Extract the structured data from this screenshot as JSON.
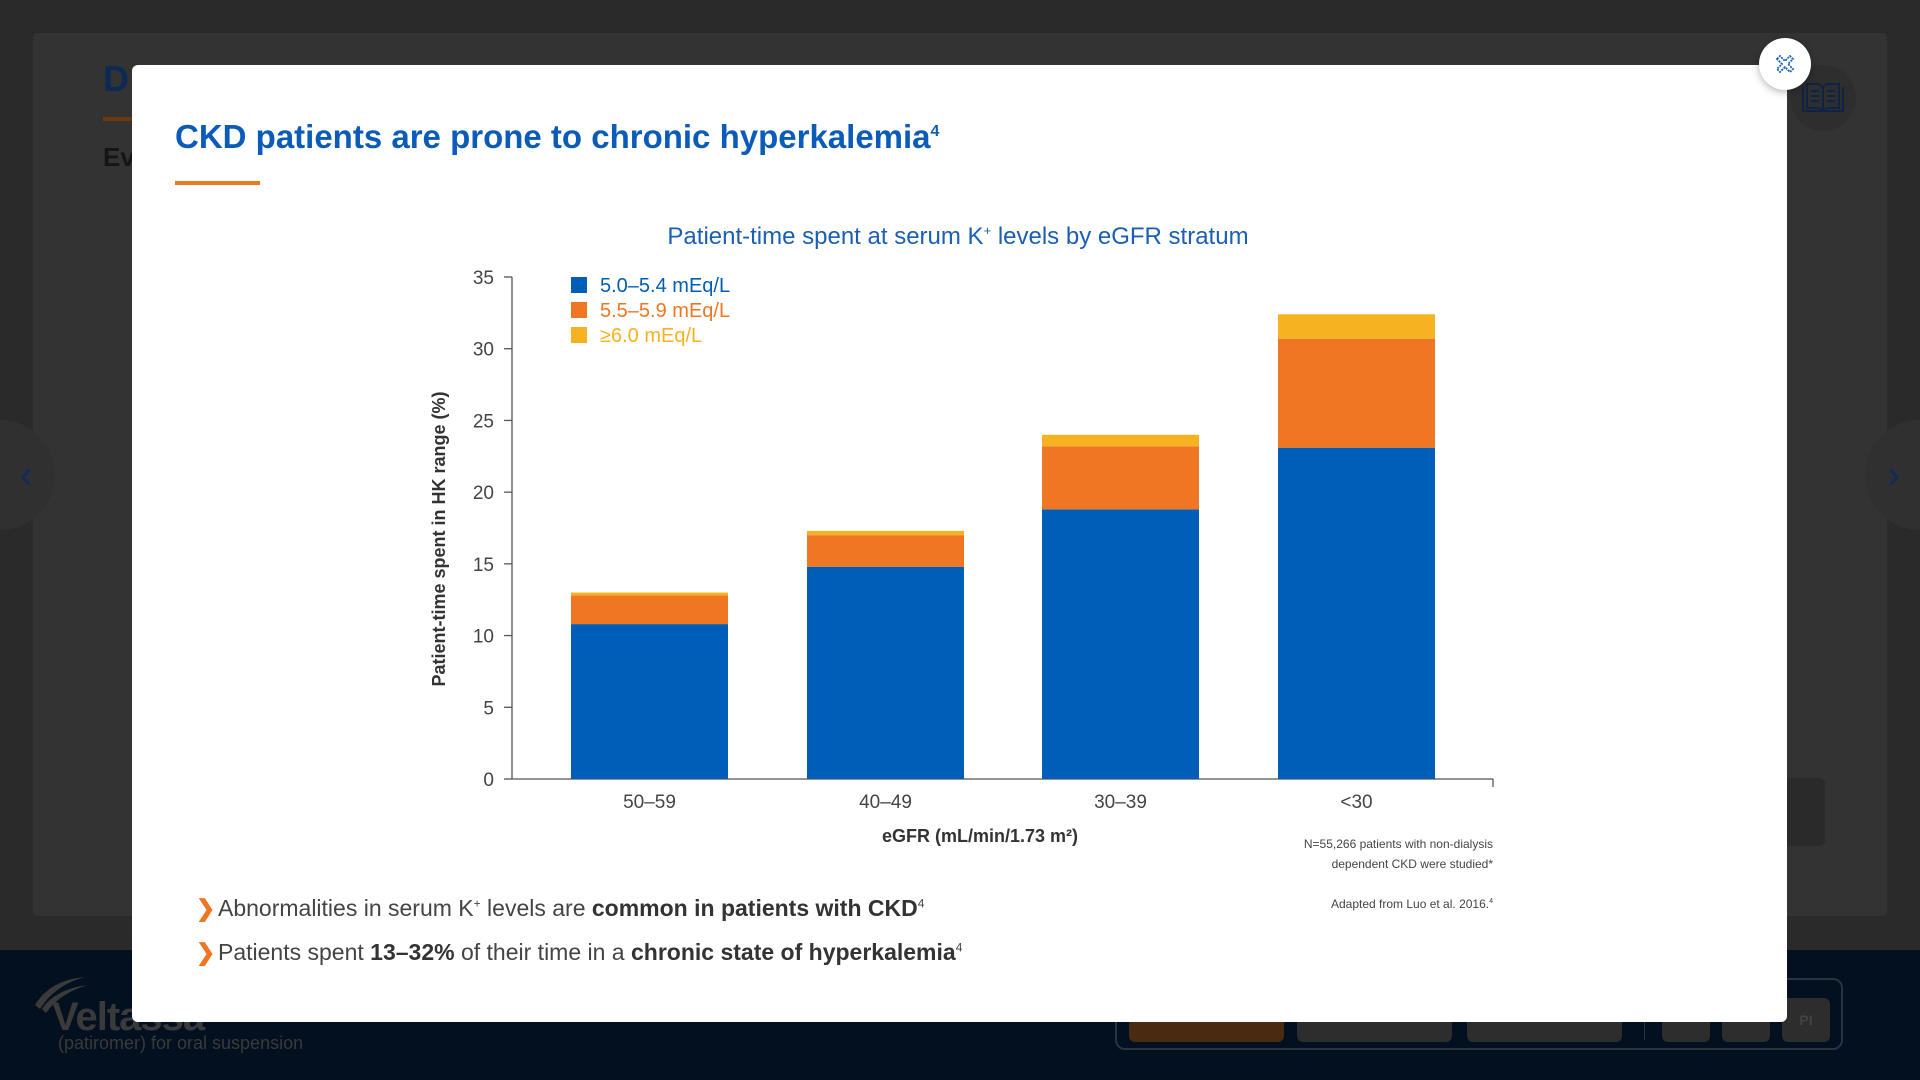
{
  "background": {
    "title_partial": "D",
    "subtitle_partial": "Ev",
    "logo_text": "Veltassa",
    "logo_sub": "(patiromer) for oral suspension",
    "toolbar_pi_label": "PI"
  },
  "modal": {
    "title": "CKD patients are prone to chronic hyperkalemia",
    "title_sup": "4",
    "chart_title_pre": "Patient-time spent at serum K",
    "chart_title_sup": "+",
    "chart_title_post": " levels by eGFR stratum",
    "footnote_line1": "N=55,266 patients with non-dialysis",
    "footnote_line2": "dependent CKD were studied*",
    "source": "Adapted from Luo et al. 2016.",
    "source_sup": "4",
    "bullets": [
      {
        "pre": "Abnormalities in serum K",
        "sup1": "+",
        "mid": " levels are ",
        "bold": "common in patients with CKD",
        "sup": "4"
      },
      {
        "pre": "Patients spent ",
        "bold1": "13–32%",
        "mid": " of their time in a ",
        "bold2": "chronic state of hyperkalemia",
        "sup": "4"
      }
    ]
  },
  "icons": {
    "close": "close-x-icon",
    "book": "book-icon",
    "prev": "chevron-left-icon",
    "next": "chevron-right-icon",
    "bullet": "chevron-right-icon"
  },
  "colors": {
    "blue": "#005eb8",
    "orange": "#ef7622",
    "yellow": "#f6b221",
    "title": "#0a5cb8"
  },
  "chart_data": {
    "type": "bar",
    "stacked": true,
    "xlabel": "eGFR (mL/min/1.73 m²)",
    "ylabel": "Patient-time spent in HK range (%)",
    "ylim": [
      0,
      35
    ],
    "yticks": [
      0,
      5,
      10,
      15,
      20,
      25,
      30,
      35
    ],
    "categories": [
      "50–59",
      "40–49",
      "30–39",
      "<30"
    ],
    "legend_position": "top-left",
    "series": [
      {
        "name": "5.0–5.4 mEq/L",
        "color": "#005eb8",
        "values": [
          10.8,
          14.8,
          18.8,
          23.1
        ]
      },
      {
        "name": "5.5–5.9 mEq/L",
        "color": "#ef7622",
        "values": [
          2.0,
          2.2,
          4.4,
          7.6
        ]
      },
      {
        "name": "≥6.0 mEq/L",
        "color": "#f6b221",
        "values": [
          0.2,
          0.3,
          0.8,
          1.7
        ]
      }
    ]
  }
}
